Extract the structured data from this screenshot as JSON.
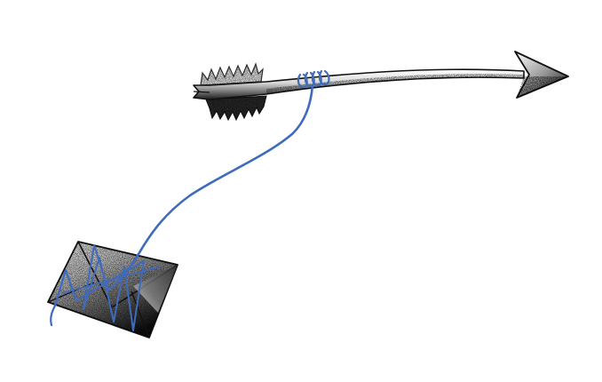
{
  "illustration": {
    "subject": "arrow-with-string-tied-to-envelope",
    "icons": [
      "arrow-icon",
      "envelope-icon",
      "string-icon"
    ],
    "colors": {
      "background": "#ffffff",
      "ink": "#111111",
      "shade_dark": "#1a1a1a",
      "shade_mid": "#7a7a7a",
      "shade_light": "#ffffff",
      "string": "#3f6bbd"
    }
  }
}
